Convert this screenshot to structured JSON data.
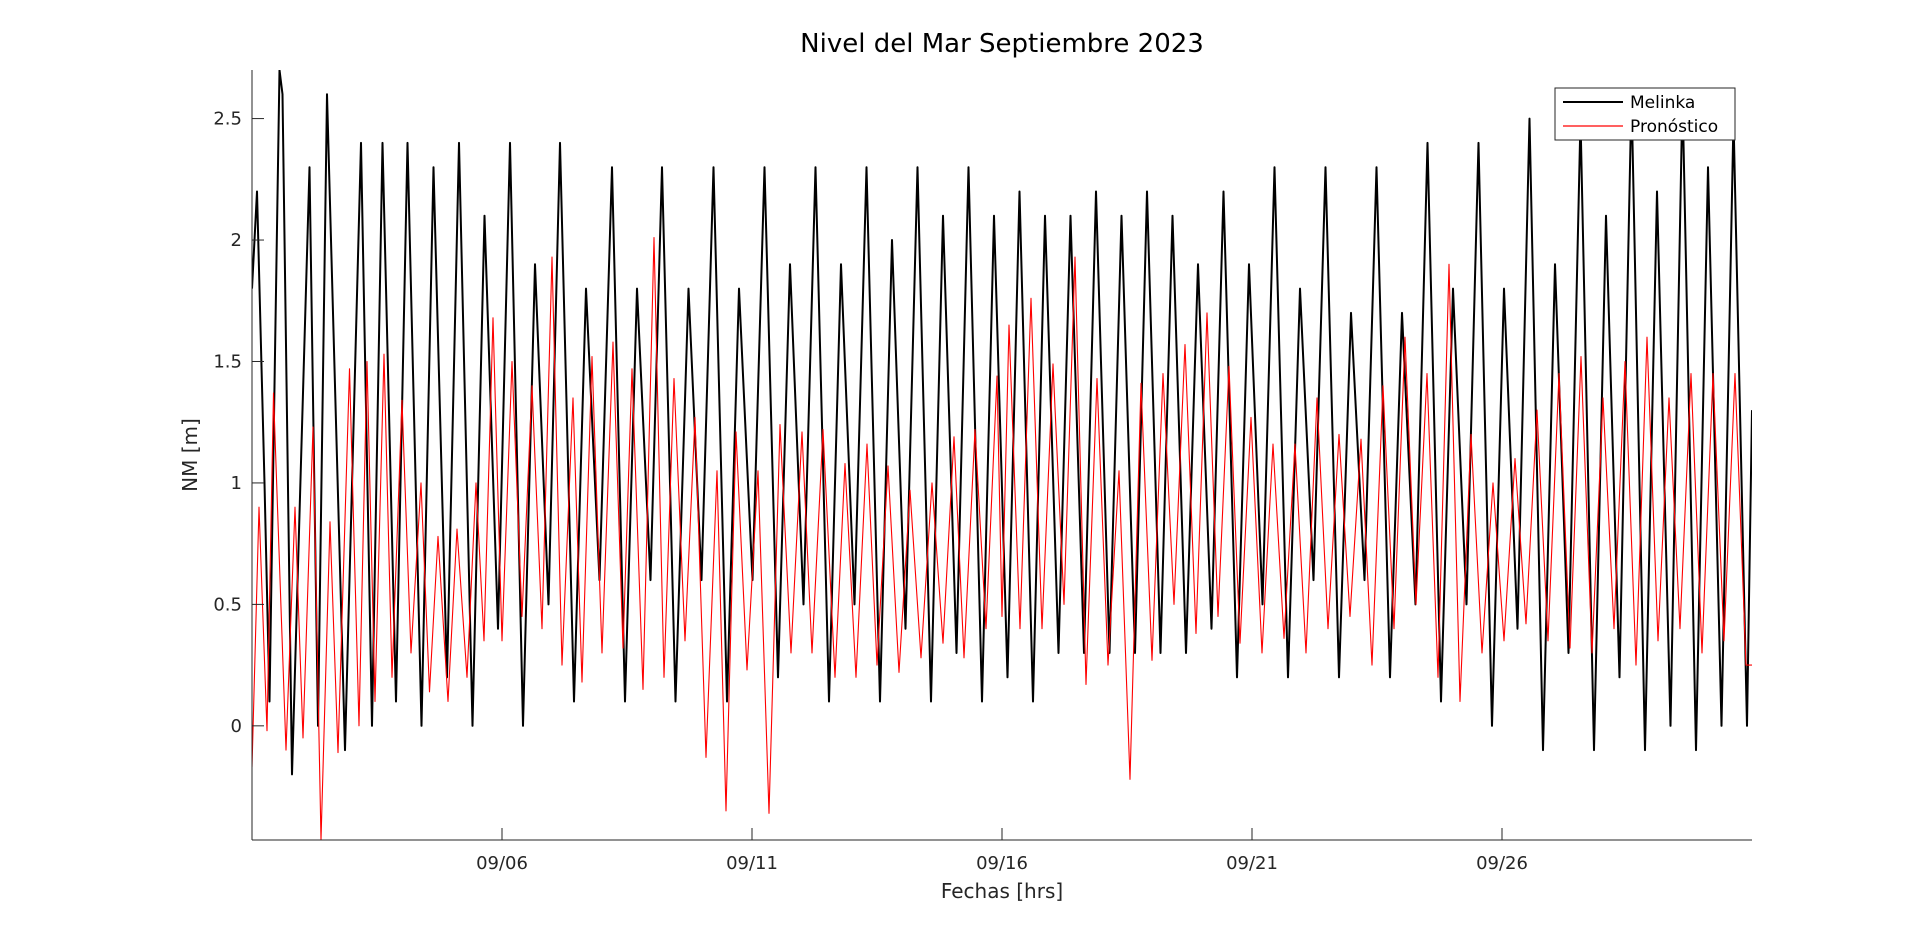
{
  "chart_data": {
    "type": "line",
    "title": "Nivel del Mar Septiembre 2023",
    "xlabel": "Fechas [hrs]",
    "ylabel": "NM [m]",
    "x_unit": "day of September 2023",
    "xlim": [
      1,
      31
    ],
    "ylim": [
      -0.47,
      2.7
    ],
    "xticks": [
      6,
      11,
      16,
      21,
      26
    ],
    "xtick_labels": [
      "09/06",
      "09/11",
      "09/16",
      "09/21",
      "09/26"
    ],
    "yticks": [
      0,
      0.5,
      1,
      1.5,
      2,
      2.5
    ],
    "ytick_labels": [
      "0",
      "0.5",
      "1",
      "1.5",
      "2",
      "2.5"
    ],
    "grid": false,
    "legend": "top-right",
    "series": [
      {
        "name": "Melinka",
        "color": "#000000",
        "x": [
          1.0,
          1.1,
          1.25,
          1.35,
          1.55,
          1.61,
          1.8,
          2.15,
          2.32,
          2.5,
          2.86,
          3.18,
          3.4,
          3.61,
          3.88,
          4.11,
          4.39,
          4.63,
          4.9,
          5.14,
          5.41,
          5.65,
          5.92,
          6.16,
          6.42,
          6.66,
          6.93,
          7.16,
          7.44,
          7.68,
          7.95,
          8.2,
          8.46,
          8.7,
          8.97,
          9.2,
          9.47,
          9.73,
          9.99,
          10.23,
          10.5,
          10.74,
          11.01,
          11.25,
          11.52,
          11.76,
          12.03,
          12.27,
          12.54,
          12.78,
          13.05,
          13.29,
          13.56,
          13.8,
          14.07,
          14.31,
          14.58,
          14.82,
          15.09,
          15.33,
          15.6,
          15.84,
          16.11,
          16.35,
          16.62,
          16.86,
          17.13,
          17.37,
          17.64,
          17.88,
          18.15,
          18.39,
          18.66,
          18.9,
          19.17,
          19.41,
          19.68,
          19.92,
          20.19,
          20.43,
          20.7,
          20.94,
          21.21,
          21.45,
          21.72,
          21.96,
          22.23,
          22.47,
          22.74,
          22.98,
          23.25,
          23.49,
          23.76,
          24.0,
          24.27,
          24.51,
          24.78,
          25.02,
          25.29,
          25.53,
          25.8,
          26.04,
          26.31,
          26.55,
          26.82,
          27.06,
          27.33,
          27.57,
          27.84,
          28.08,
          28.35,
          28.59,
          28.86,
          29.1,
          29.37,
          29.61,
          29.88,
          30.12,
          30.39,
          30.63,
          30.9,
          31.0
        ],
        "y": [
          1.8,
          2.2,
          1.0,
          0.1,
          2.7,
          2.6,
          -0.2,
          2.3,
          0.0,
          2.6,
          -0.1,
          2.4,
          0.0,
          2.4,
          0.1,
          2.4,
          0.0,
          2.3,
          0.2,
          2.4,
          0.0,
          2.1,
          0.4,
          2.4,
          0.0,
          1.9,
          0.5,
          2.4,
          0.1,
          1.8,
          0.6,
          2.3,
          0.1,
          1.8,
          0.6,
          2.3,
          0.1,
          1.8,
          0.6,
          2.3,
          0.1,
          1.8,
          0.6,
          2.3,
          0.2,
          1.9,
          0.5,
          2.3,
          0.1,
          1.9,
          0.5,
          2.3,
          0.1,
          2.0,
          0.4,
          2.3,
          0.1,
          2.1,
          0.3,
          2.3,
          0.1,
          2.1,
          0.2,
          2.2,
          0.1,
          2.1,
          0.3,
          2.1,
          0.3,
          2.2,
          0.3,
          2.1,
          0.3,
          2.2,
          0.3,
          2.1,
          0.3,
          1.9,
          0.4,
          2.2,
          0.2,
          1.9,
          0.5,
          2.3,
          0.2,
          1.8,
          0.6,
          2.3,
          0.2,
          1.7,
          0.6,
          2.3,
          0.2,
          1.7,
          0.5,
          2.4,
          0.1,
          1.8,
          0.5,
          2.4,
          0.0,
          1.8,
          0.4,
          2.5,
          -0.1,
          1.9,
          0.3,
          2.5,
          -0.1,
          2.1,
          0.2,
          2.6,
          -0.1,
          2.2,
          0.0,
          2.6,
          -0.1,
          2.3,
          0.0,
          2.5,
          0.0,
          1.3
        ]
      },
      {
        "name": "Pronóstico",
        "color": "#ff0000",
        "x": [
          1.0,
          1.14,
          1.3,
          1.43,
          1.68,
          1.86,
          2.02,
          2.22,
          2.38,
          2.56,
          2.72,
          2.95,
          3.14,
          3.3,
          3.46,
          3.64,
          3.8,
          4.0,
          4.18,
          4.38,
          4.55,
          4.72,
          4.92,
          5.1,
          5.3,
          5.48,
          5.64,
          5.82,
          6.0,
          6.2,
          6.4,
          6.6,
          6.8,
          7.0,
          7.2,
          7.42,
          7.6,
          7.8,
          8.0,
          8.22,
          8.42,
          8.6,
          8.82,
          9.04,
          9.24,
          9.44,
          9.66,
          9.86,
          10.08,
          10.3,
          10.48,
          10.68,
          10.9,
          11.12,
          11.34,
          11.56,
          11.78,
          12.0,
          12.2,
          12.42,
          12.66,
          12.86,
          13.08,
          13.3,
          13.5,
          13.72,
          13.94,
          14.16,
          14.38,
          14.6,
          14.82,
          15.04,
          15.24,
          15.46,
          15.68,
          15.9,
          16.0,
          16.14,
          16.36,
          16.58,
          16.8,
          17.02,
          17.24,
          17.46,
          17.68,
          17.9,
          18.12,
          18.34,
          18.56,
          18.78,
          19.0,
          19.22,
          19.44,
          19.66,
          19.88,
          20.1,
          20.32,
          20.54,
          20.76,
          20.98,
          21.2,
          21.42,
          21.64,
          21.86,
          22.08,
          22.3,
          22.52,
          22.74,
          22.96,
          23.18,
          23.4,
          23.62,
          23.84,
          24.06,
          24.28,
          24.5,
          24.72,
          24.94,
          25.16,
          25.38,
          25.6,
          25.82,
          26.04,
          26.26,
          26.48,
          26.7,
          26.92,
          27.14,
          27.36,
          27.58,
          27.8,
          28.02,
          28.24,
          28.46,
          28.68,
          28.9,
          29.12,
          29.34,
          29.56,
          29.78,
          30.0,
          30.22,
          30.44,
          30.66,
          30.88,
          31.0
        ],
        "y": [
          -0.17,
          0.9,
          -0.02,
          1.37,
          -0.1,
          0.9,
          -0.05,
          1.23,
          -0.47,
          0.84,
          -0.11,
          1.47,
          0.0,
          1.5,
          0.1,
          1.53,
          0.2,
          1.34,
          0.3,
          1.0,
          0.14,
          0.78,
          0.1,
          0.81,
          0.2,
          1.0,
          0.35,
          1.68,
          0.35,
          1.5,
          0.45,
          1.4,
          0.4,
          1.93,
          0.25,
          1.35,
          0.18,
          1.52,
          0.3,
          1.58,
          0.32,
          1.47,
          0.15,
          2.01,
          0.2,
          1.43,
          0.35,
          1.27,
          -0.13,
          1.05,
          -0.35,
          1.21,
          0.23,
          1.05,
          -0.36,
          1.24,
          0.3,
          1.21,
          0.3,
          1.22,
          0.2,
          1.08,
          0.2,
          1.16,
          0.25,
          1.07,
          0.22,
          0.97,
          0.28,
          1.0,
          0.34,
          1.19,
          0.28,
          1.22,
          0.4,
          1.44,
          0.45,
          1.65,
          0.4,
          1.76,
          0.4,
          1.49,
          0.5,
          1.93,
          0.17,
          1.43,
          0.25,
          1.05,
          -0.22,
          1.41,
          0.27,
          1.45,
          0.5,
          1.57,
          0.38,
          1.7,
          0.45,
          1.48,
          0.34,
          1.27,
          0.3,
          1.16,
          0.36,
          1.16,
          0.3,
          1.35,
          0.4,
          1.2,
          0.45,
          1.18,
          0.25,
          1.4,
          0.4,
          1.6,
          0.5,
          1.45,
          0.2,
          1.9,
          0.1,
          1.2,
          0.3,
          1.0,
          0.35,
          1.1,
          0.42,
          1.3,
          0.35,
          1.45,
          0.32,
          1.52,
          0.3,
          1.35,
          0.4,
          1.5,
          0.25,
          1.6,
          0.35,
          1.35,
          0.4,
          1.45,
          0.3,
          1.45,
          0.35,
          1.45,
          0.25,
          0.25
        ]
      }
    ]
  }
}
